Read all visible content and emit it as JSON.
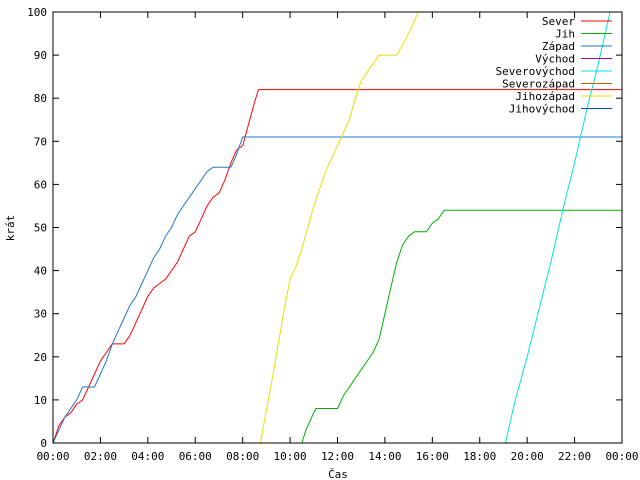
{
  "chart_data": {
    "type": "line",
    "xlabel": "Čas",
    "ylabel": "krát",
    "xlim": [
      "00:00",
      "24:00"
    ],
    "ylim": [
      0,
      100
    ],
    "x_ticks": [
      "00:00",
      "02:00",
      "04:00",
      "06:00",
      "08:00",
      "10:00",
      "12:00",
      "14:00",
      "16:00",
      "18:00",
      "20:00",
      "22:00",
      "00:00"
    ],
    "y_ticks": [
      0,
      10,
      20,
      30,
      40,
      50,
      60,
      70,
      80,
      90,
      100
    ],
    "grid": false,
    "legend_position": "top-right",
    "series": [
      {
        "name": "Sever",
        "color": "#ff0000",
        "points": [
          [
            "00:00",
            0
          ],
          [
            "00:15",
            4
          ],
          [
            "00:30",
            6
          ],
          [
            "00:45",
            7
          ],
          [
            "01:00",
            9
          ],
          [
            "01:15",
            10
          ],
          [
            "01:30",
            13
          ],
          [
            "01:45",
            16
          ],
          [
            "02:00",
            19
          ],
          [
            "02:15",
            21
          ],
          [
            "02:30",
            23
          ],
          [
            "03:00",
            23
          ],
          [
            "03:15",
            25
          ],
          [
            "03:30",
            28
          ],
          [
            "03:45",
            31
          ],
          [
            "04:00",
            34
          ],
          [
            "04:15",
            36
          ],
          [
            "04:30",
            37
          ],
          [
            "04:45",
            38
          ],
          [
            "05:00",
            40
          ],
          [
            "05:15",
            42
          ],
          [
            "05:30",
            45
          ],
          [
            "05:45",
            48
          ],
          [
            "06:00",
            49
          ],
          [
            "06:15",
            52
          ],
          [
            "06:30",
            55
          ],
          [
            "06:45",
            57
          ],
          [
            "07:00",
            58
          ],
          [
            "07:15",
            61
          ],
          [
            "07:30",
            65
          ],
          [
            "07:45",
            68
          ],
          [
            "08:00",
            69
          ],
          [
            "08:15",
            74
          ],
          [
            "08:30",
            79
          ],
          [
            "08:40",
            82
          ],
          [
            "24:00",
            82
          ]
        ]
      },
      {
        "name": "Jih",
        "color": "#00b000",
        "points": [
          [
            "10:30",
            0
          ],
          [
            "10:40",
            3
          ],
          [
            "10:55",
            6
          ],
          [
            "11:05",
            8
          ],
          [
            "12:00",
            8
          ],
          [
            "12:15",
            11
          ],
          [
            "12:30",
            13
          ],
          [
            "12:45",
            15
          ],
          [
            "13:00",
            17
          ],
          [
            "13:15",
            19
          ],
          [
            "13:30",
            21
          ],
          [
            "13:45",
            24
          ],
          [
            "14:00",
            30
          ],
          [
            "14:15",
            36
          ],
          [
            "14:30",
            42
          ],
          [
            "14:45",
            46
          ],
          [
            "15:00",
            48
          ],
          [
            "15:15",
            49
          ],
          [
            "15:45",
            49
          ],
          [
            "16:00",
            51
          ],
          [
            "16:15",
            52
          ],
          [
            "16:30",
            54
          ],
          [
            "24:00",
            54
          ]
        ]
      },
      {
        "name": "Západ",
        "color": "#1e78c8",
        "points": [
          [
            "00:00",
            0
          ],
          [
            "00:15",
            3
          ],
          [
            "00:30",
            6
          ],
          [
            "00:45",
            8
          ],
          [
            "01:00",
            10
          ],
          [
            "01:15",
            13
          ],
          [
            "01:45",
            13
          ],
          [
            "02:00",
            16
          ],
          [
            "02:15",
            19
          ],
          [
            "02:30",
            23
          ],
          [
            "02:45",
            26
          ],
          [
            "03:00",
            29
          ],
          [
            "03:15",
            32
          ],
          [
            "03:30",
            34
          ],
          [
            "03:45",
            37
          ],
          [
            "04:00",
            40
          ],
          [
            "04:15",
            43
          ],
          [
            "04:30",
            45
          ],
          [
            "04:45",
            48
          ],
          [
            "05:00",
            50
          ],
          [
            "05:15",
            53
          ],
          [
            "05:30",
            55
          ],
          [
            "05:45",
            57
          ],
          [
            "06:00",
            59
          ],
          [
            "06:15",
            61
          ],
          [
            "06:30",
            63
          ],
          [
            "06:45",
            64
          ],
          [
            "07:30",
            64
          ],
          [
            "07:45",
            67
          ],
          [
            "08:00",
            71
          ],
          [
            "24:00",
            71
          ]
        ]
      },
      {
        "name": "Východ",
        "color": "#a000a0",
        "points": []
      },
      {
        "name": "Severovýchod",
        "color": "#00e0e0",
        "points": [
          [
            "19:05",
            0
          ],
          [
            "19:30",
            10
          ],
          [
            "20:00",
            20
          ],
          [
            "20:30",
            31
          ],
          [
            "21:00",
            42
          ],
          [
            "21:30",
            54
          ],
          [
            "22:00",
            65
          ],
          [
            "22:30",
            77
          ],
          [
            "23:00",
            88
          ],
          [
            "23:30",
            100
          ]
        ]
      },
      {
        "name": "Severozápad",
        "color": "#c06000",
        "points": []
      },
      {
        "name": "Jihozápad",
        "color": "#e8e000",
        "points": [
          [
            "08:45",
            0
          ],
          [
            "09:15",
            15
          ],
          [
            "09:45",
            31
          ],
          [
            "10:00",
            38
          ],
          [
            "10:15",
            41
          ],
          [
            "10:30",
            45
          ],
          [
            "11:00",
            55
          ],
          [
            "11:30",
            63
          ],
          [
            "12:00",
            69
          ],
          [
            "12:30",
            75
          ],
          [
            "12:45",
            80
          ],
          [
            "13:00",
            84
          ],
          [
            "13:15",
            86
          ],
          [
            "13:45",
            90
          ],
          [
            "14:30",
            90
          ],
          [
            "15:00",
            95
          ],
          [
            "15:25",
            100
          ]
        ]
      },
      {
        "name": "Jihovýchod",
        "color": "#0050a0",
        "points": []
      }
    ]
  }
}
